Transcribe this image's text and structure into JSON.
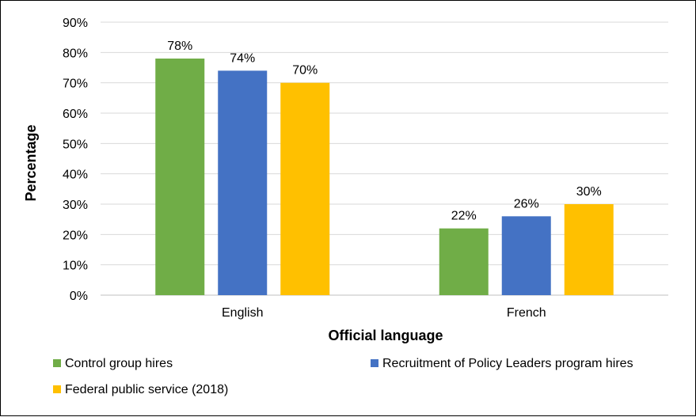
{
  "chart_data": {
    "type": "bar",
    "title": "",
    "xlabel": "Official language",
    "ylabel": "Percentage",
    "categories": [
      "English",
      "French"
    ],
    "ylim": [
      0,
      90
    ],
    "ytick_step": 10,
    "ytick_suffix": "%",
    "grid": true,
    "legend_position": "bottom",
    "series": [
      {
        "name": "Control group hires",
        "values": [
          78,
          22
        ],
        "labels": [
          "78%",
          "22%"
        ],
        "color": "#70AD47"
      },
      {
        "name": "Recruitment of Policy Leaders program hires",
        "values": [
          74,
          26
        ],
        "labels": [
          "74%",
          "26%"
        ],
        "color": "#4472C4"
      },
      {
        "name": "Federal public service (2018)",
        "values": [
          70,
          30
        ],
        "labels": [
          "70%",
          "30%"
        ],
        "color": "#FFC000"
      }
    ]
  }
}
